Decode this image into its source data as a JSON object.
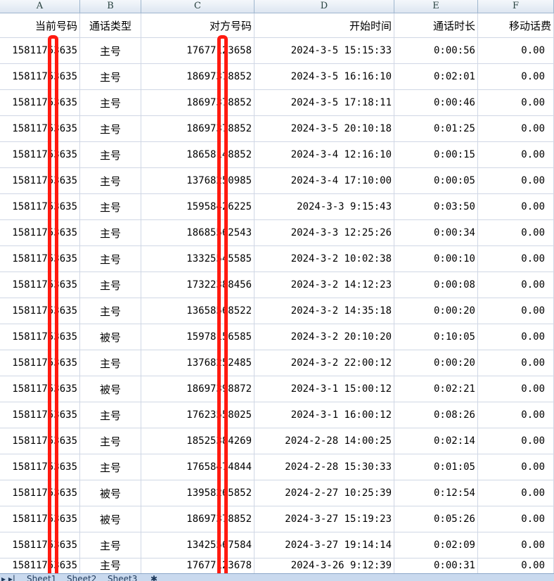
{
  "columns": [
    "A",
    "B",
    "C",
    "D",
    "E",
    "F"
  ],
  "headers": [
    "当前号码",
    "通话类型",
    "对方号码",
    "开始时间",
    "通话时长",
    "移动话费"
  ],
  "rows": [
    [
      "15811753635",
      "主号",
      "17677123658",
      "2024-3-5 15:15:33",
      "0:00:56",
      "0.00"
    ],
    [
      "15811753635",
      "主号",
      "18697378852",
      "2024-3-5 16:16:10",
      "0:02:01",
      "0.00"
    ],
    [
      "15811753635",
      "主号",
      "18697378852",
      "2024-3-5 17:18:11",
      "0:00:46",
      "0.00"
    ],
    [
      "15811753635",
      "主号",
      "18697378852",
      "2024-3-5 20:10:18",
      "0:01:25",
      "0.00"
    ],
    [
      "15811753635",
      "主号",
      "18658148852",
      "2024-3-4 12:16:10",
      "0:00:15",
      "0.00"
    ],
    [
      "15811753635",
      "主号",
      "13768250985",
      "2024-3-4 17:10:00",
      "0:00:05",
      "0.00"
    ],
    [
      "15811753635",
      "主号",
      "15958426225",
      "2024-3-3 9:15:43",
      "0:03:50",
      "0.00"
    ],
    [
      "15811753635",
      "主号",
      "18685562543",
      "2024-3-3 12:25:26",
      "0:00:34",
      "0.00"
    ],
    [
      "15811753635",
      "主号",
      "13325545585",
      "2024-3-2 10:02:38",
      "0:00:10",
      "0.00"
    ],
    [
      "15811753635",
      "主号",
      "17322388456",
      "2024-3-2 14:12:23",
      "0:00:08",
      "0.00"
    ],
    [
      "15811753635",
      "主号",
      "13658568522",
      "2024-3-2 14:35:18",
      "0:00:20",
      "0.00"
    ],
    [
      "15811753635",
      "被号",
      "15978156585",
      "2024-3-2 20:10:20",
      "0:10:05",
      "0.00"
    ],
    [
      "15811753635",
      "主号",
      "13768252485",
      "2024-3-2 22:00:12",
      "0:00:20",
      "0.00"
    ],
    [
      "15811753635",
      "被号",
      "18697398872",
      "2024-3-1 15:00:12",
      "0:02:21",
      "0.00"
    ],
    [
      "15811753635",
      "主号",
      "17623558025",
      "2024-3-1 16:00:12",
      "0:08:26",
      "0.00"
    ],
    [
      "15811753635",
      "主号",
      "18525384269",
      "2024-2-28 14:00:25",
      "0:02:14",
      "0.00"
    ],
    [
      "15811753635",
      "主号",
      "17658474844",
      "2024-2-28 15:30:33",
      "0:01:05",
      "0.00"
    ],
    [
      "15811753635",
      "被号",
      "13958265852",
      "2024-2-27 10:25:39",
      "0:12:54",
      "0.00"
    ],
    [
      "15811753635",
      "被号",
      "18697378852",
      "2024-3-27 15:19:23",
      "0:05:26",
      "0.00"
    ],
    [
      "15811753635",
      "主号",
      "13425567584",
      "2024-3-27 19:14:14",
      "0:02:09",
      "0.00"
    ],
    [
      "15811753635",
      "主号",
      "17677123678",
      "2024-3-26 9:12:39",
      "0:00:31",
      "0.00"
    ]
  ],
  "sheet_tabs": [
    "Sheet1",
    "Sheet2",
    "Sheet3"
  ],
  "redaction_color": "#ff1a10"
}
